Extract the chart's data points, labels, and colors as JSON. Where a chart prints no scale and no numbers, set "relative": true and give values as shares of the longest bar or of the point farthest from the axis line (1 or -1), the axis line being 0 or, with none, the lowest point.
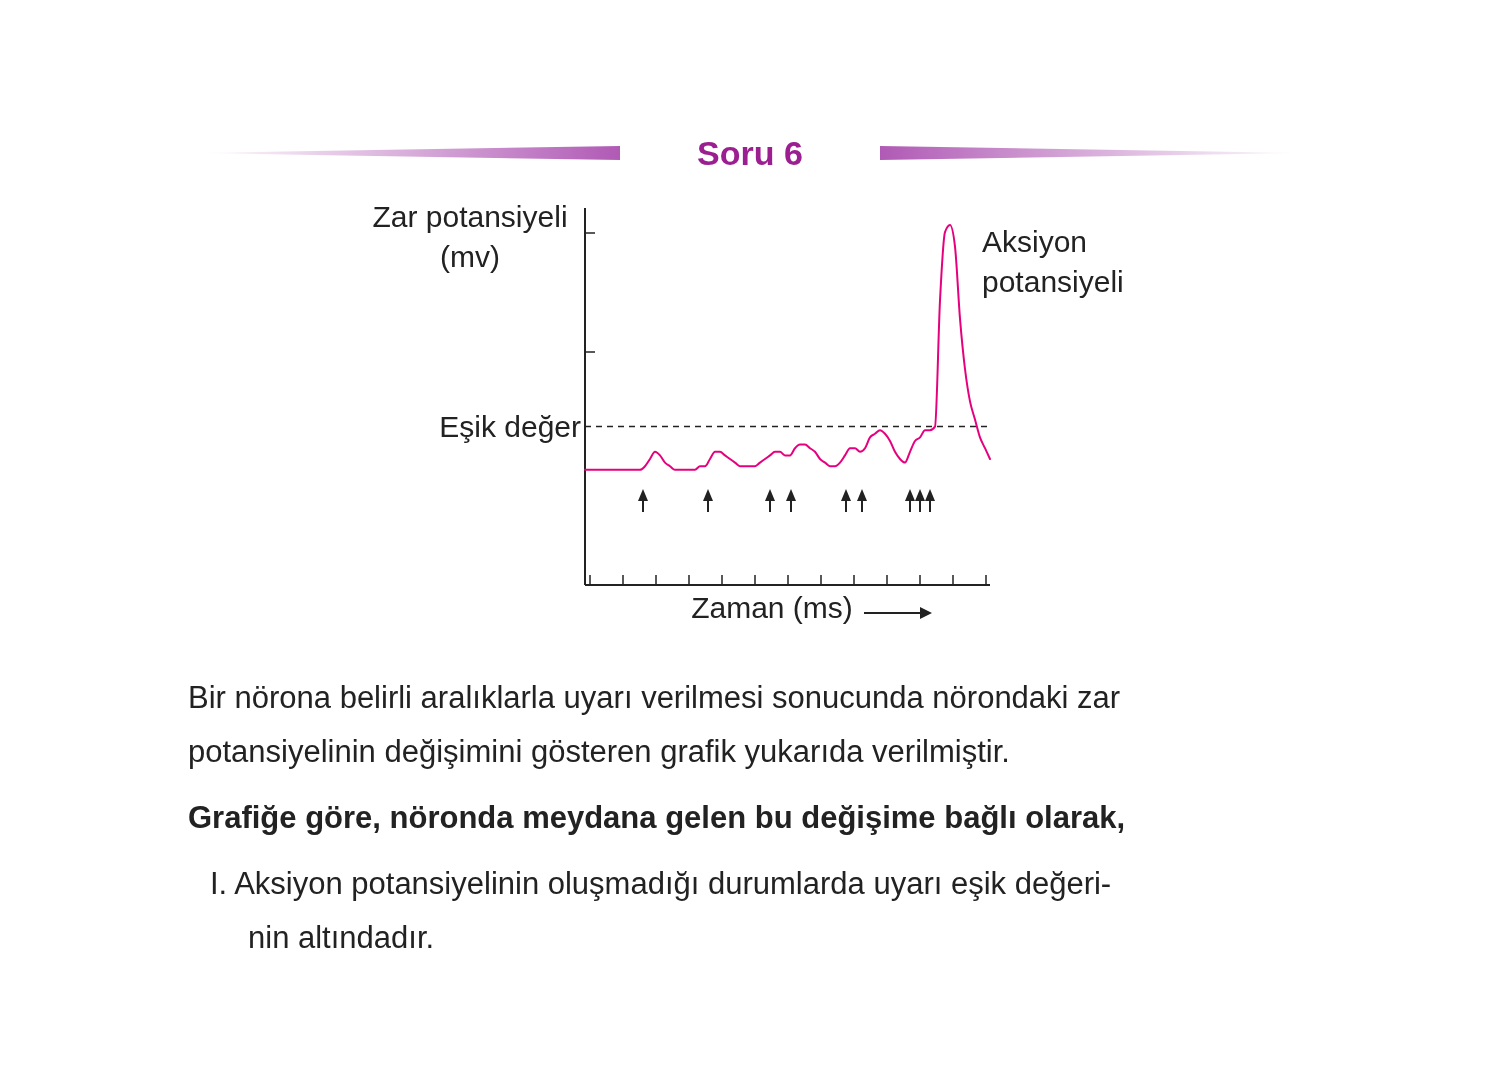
{
  "chart_data": {
    "type": "line",
    "title": "Soru 6",
    "xlabel": "Zaman (ms)",
    "ylabel": "Zar potansiyeli (mv)",
    "relative": true,
    "marker": "none",
    "line_style": "solid",
    "categories": [
      null,
      null,
      null,
      null,
      null,
      null,
      null,
      null,
      null,
      null,
      null,
      null,
      null,
      null,
      null,
      null,
      null,
      null,
      null,
      null,
      null,
      null,
      null,
      null,
      null,
      null,
      null,
      null,
      null,
      null,
      null,
      null,
      null,
      null,
      null,
      null,
      null,
      null,
      null,
      null,
      null,
      null,
      null,
      null,
      null,
      null,
      null,
      null,
      null,
      null,
      null,
      null,
      null,
      null,
      null,
      null,
      null,
      null,
      null,
      null,
      null,
      null,
      null,
      null,
      null,
      null,
      null,
      null,
      null,
      null,
      null,
      null,
      null,
      null,
      null,
      null,
      null,
      null,
      null,
      null,
      null,
      null
    ],
    "series": [
      {
        "color": "#e6007e",
        "values": [
          0.32,
          0.32,
          0.32,
          0.32,
          0.32,
          0.32,
          0.32,
          0.32,
          0.32,
          0.32,
          0.32,
          0.32,
          0.33,
          0.35,
          0.37,
          0.36,
          0.34,
          0.33,
          0.32,
          0.32,
          0.32,
          0.32,
          0.32,
          0.33,
          0.33,
          0.35,
          0.37,
          0.37,
          0.36,
          0.35,
          0.34,
          0.33,
          0.33,
          0.33,
          0.33,
          0.34,
          0.35,
          0.36,
          0.37,
          0.37,
          0.36,
          0.36,
          0.38,
          0.39,
          0.39,
          0.38,
          0.37,
          0.35,
          0.34,
          0.33,
          0.33,
          0.34,
          0.36,
          0.38,
          0.38,
          0.37,
          0.38,
          0.41,
          0.42,
          0.43,
          0.42,
          0.4,
          0.37,
          0.35,
          0.34,
          0.37,
          0.4,
          0.41,
          0.43,
          0.43,
          0.44,
          0.79,
          0.98,
          1.0,
          0.94,
          0.74,
          0.6,
          0.51,
          0.46,
          0.41,
          0.38,
          0.35
        ]
      }
    ],
    "ref_lines": [
      {
        "axis": "y",
        "value": 0.44,
        "label": "Eşik değer",
        "line_style": "dashed",
        "color": "#222222"
      }
    ],
    "annotations": [
      "Aksiyon potansiyeli",
      "Bir nörona belirli aralıklarla uyarı verilmesi sonucunda nörondaki zar",
      "potansiyelinin değişimini gösteren grafik yukarıda verilmiştir.",
      "Grafiğe göre, nöronda meydana gelen bu değişime bağlı olarak,",
      "I. Aksiyon potansiyelinin oluşmadığı durumlarda uyarı eşik değeri-",
      "nin altındadır."
    ]
  }
}
